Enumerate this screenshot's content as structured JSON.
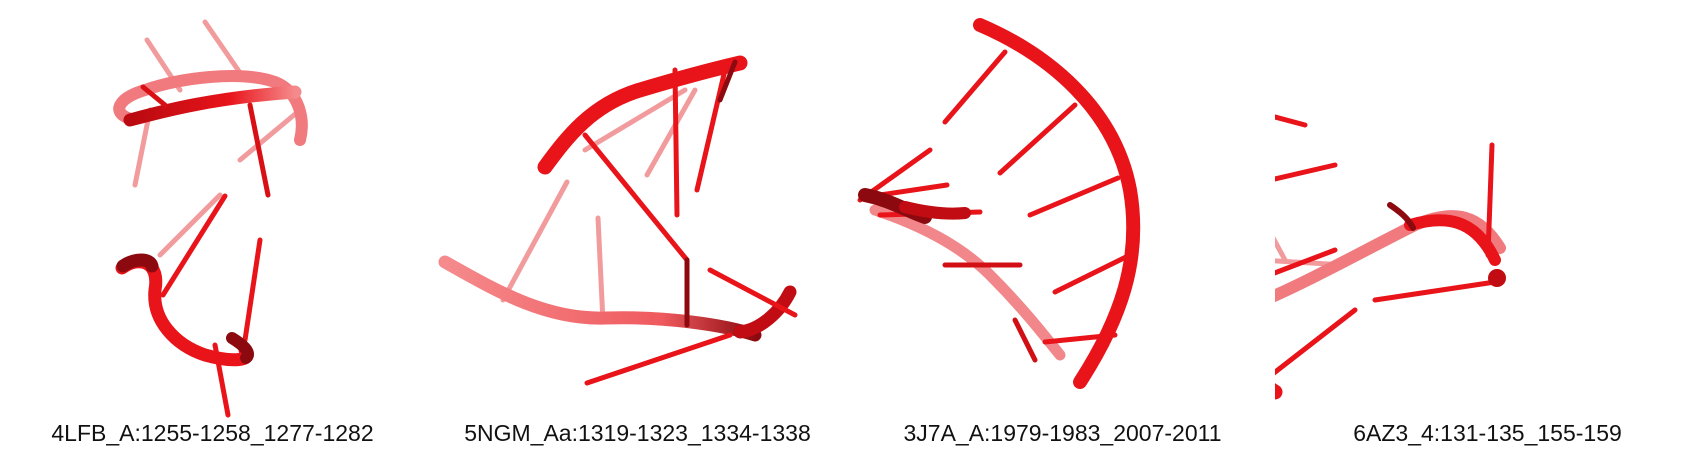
{
  "figure": {
    "background": "#ffffff",
    "structure_color": "#e8141a",
    "shade_color": "#8c0a0f",
    "panels": [
      {
        "label": "4LFB_A:1255-1258_1277-1282"
      },
      {
        "label": "5NGM_Aa:1319-1323_1334-1338"
      },
      {
        "label": "3J7A_A:1979-1983_2007-2011"
      },
      {
        "label": "6AZ3_4:131-135_155-159"
      }
    ]
  }
}
